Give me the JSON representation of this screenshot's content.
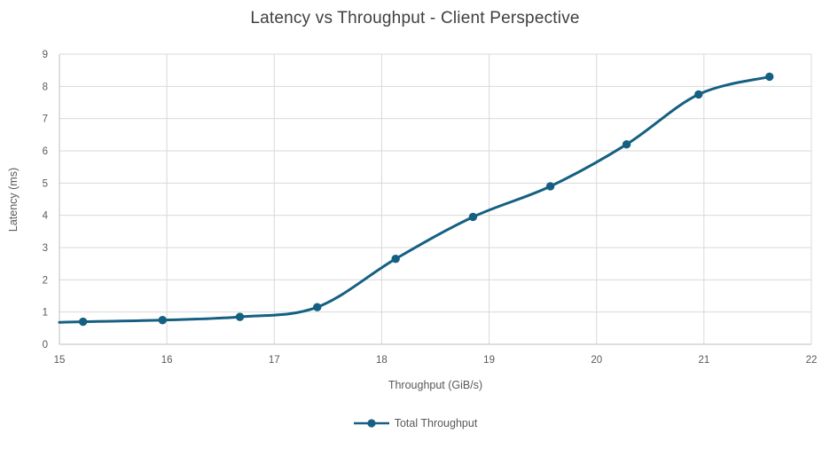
{
  "chart_data": {
    "type": "line",
    "title": "Latency vs Throughput - Client Perspective",
    "xlabel": "Throughput (GiB/s)",
    "ylabel": "Latency (ms)",
    "xlim": [
      15,
      22
    ],
    "ylim": [
      0,
      9
    ],
    "x_ticks": [
      15,
      16,
      17,
      18,
      19,
      20,
      21,
      22
    ],
    "y_ticks": [
      0,
      1,
      2,
      3,
      4,
      5,
      6,
      7,
      8,
      9
    ],
    "grid": true,
    "legend_position": "bottom-center",
    "series": [
      {
        "name": "Total Throughput",
        "color": "#156082",
        "marker": "circle",
        "smooth": true,
        "line_enters_plot_left_edge_at": {
          "x": 15.0,
          "y": 0.68
        },
        "x": [
          15.22,
          15.96,
          16.68,
          17.4,
          18.13,
          18.85,
          19.57,
          20.28,
          20.95,
          21.61
        ],
        "y": [
          0.7,
          0.75,
          0.85,
          1.15,
          2.65,
          3.95,
          4.9,
          6.2,
          7.75,
          8.3
        ]
      }
    ]
  },
  "style": {
    "series_color": "#156082",
    "gridline_color": "#d9d9d9",
    "axis_line_color": "#bfbfbf",
    "tick_text_color": "#595959",
    "title_text_color": "#404040"
  }
}
